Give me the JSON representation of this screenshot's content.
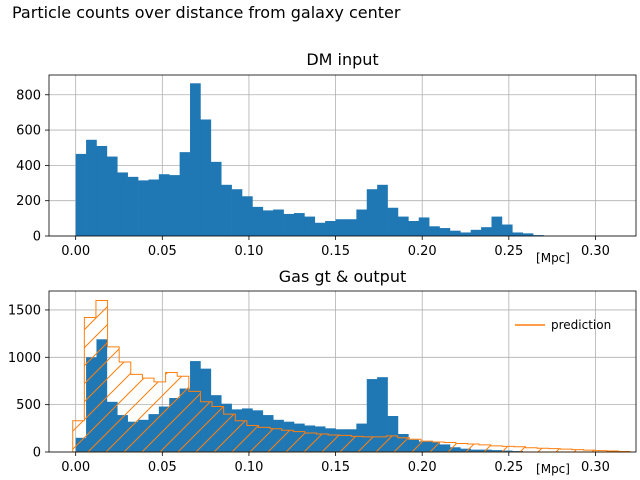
{
  "figure": {
    "suptitle": "Particle counts over distance from galaxy center"
  },
  "chart_data": [
    {
      "type": "bar",
      "title": "DM input",
      "unit_label": "[Mpc]",
      "xlim": [
        -0.0154,
        0.3234
      ],
      "ylim": [
        0,
        912
      ],
      "xticks": [
        0.0,
        0.05,
        0.1,
        0.15,
        0.2,
        0.25,
        0.3
      ],
      "xtick_labels": [
        "0.00",
        "0.05",
        "0.10",
        "0.15",
        "0.20",
        "0.25",
        "0.30"
      ],
      "yticks": [
        0,
        200,
        400,
        600,
        800
      ],
      "ytick_labels": [
        "0",
        "200",
        "400",
        "600",
        "800"
      ],
      "grid": true,
      "legend": null,
      "series": [
        {
          "style": "filled-bar",
          "color": "#1f77b4",
          "bin_start": 0.0,
          "bin_width": 0.006,
          "values": [
            465,
            545,
            510,
            450,
            360,
            335,
            315,
            320,
            350,
            345,
            475,
            865,
            660,
            420,
            290,
            265,
            225,
            165,
            145,
            150,
            125,
            130,
            110,
            75,
            85,
            95,
            95,
            150,
            265,
            290,
            160,
            110,
            85,
            105,
            55,
            45,
            30,
            20,
            35,
            50,
            110,
            65,
            20,
            15,
            5
          ]
        }
      ]
    },
    {
      "type": "bar",
      "title": "Gas gt & output",
      "unit_label": "[Mpc]",
      "xlim": [
        -0.0154,
        0.3234
      ],
      "ylim": [
        0,
        1700
      ],
      "xticks": [
        0.0,
        0.05,
        0.1,
        0.15,
        0.2,
        0.25,
        0.3
      ],
      "xtick_labels": [
        "0.00",
        "0.05",
        "0.10",
        "0.15",
        "0.20",
        "0.25",
        "0.30"
      ],
      "yticks": [
        0,
        500,
        1000,
        1500
      ],
      "ytick_labels": [
        "0",
        "500",
        "1000",
        "1500"
      ],
      "grid": true,
      "legend": "top-right",
      "series": [
        {
          "style": "filled-bar",
          "color": "#1f77b4",
          "bin_start": 0.0,
          "bin_width": 0.006,
          "values": [
            150,
            1000,
            1190,
            530,
            390,
            320,
            340,
            400,
            480,
            570,
            670,
            960,
            880,
            600,
            510,
            450,
            460,
            440,
            390,
            340,
            320,
            300,
            280,
            270,
            250,
            240,
            240,
            300,
            770,
            790,
            380,
            190,
            130,
            110,
            110,
            80,
            50,
            35,
            25,
            25,
            20,
            15,
            10,
            5,
            0
          ]
        },
        {
          "style": "hatched-step",
          "name": "prediction",
          "color": "#ff7f0e",
          "bin_start": -0.0017,
          "bin_width": 0.0067,
          "values": [
            330,
            1420,
            1600,
            1110,
            950,
            820,
            780,
            740,
            840,
            800,
            640,
            530,
            480,
            400,
            330,
            280,
            260,
            245,
            230,
            215,
            200,
            190,
            180,
            175,
            165,
            160,
            160,
            170,
            150,
            135,
            115,
            105,
            100,
            90,
            85,
            75,
            65,
            60,
            55,
            45,
            40,
            35,
            30,
            25,
            20,
            15,
            10,
            5
          ]
        }
      ]
    }
  ]
}
